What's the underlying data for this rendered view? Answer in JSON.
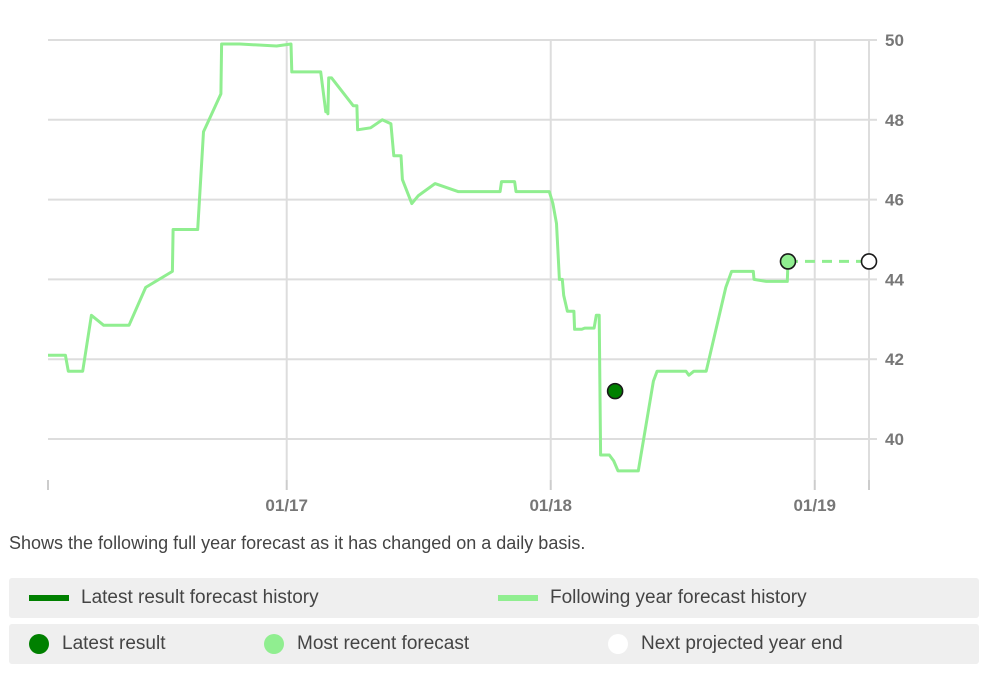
{
  "chart_data": {
    "type": "line",
    "title": "",
    "xlabel": "",
    "ylabel": "",
    "x_ticks": [
      "01/17",
      "01/18",
      "01/19"
    ],
    "y_ticks": [
      40,
      42,
      44,
      46,
      48,
      50
    ],
    "ylim": [
      39.0,
      50.0
    ],
    "xlim": [
      "2016-02-06",
      "2019-03-17"
    ],
    "grid": true,
    "y_axis_side": "right",
    "series": [
      {
        "name": "Following year forecast history",
        "color": "#90ee90",
        "points": [
          [
            "2016-02-06",
            42.1
          ],
          [
            "2016-03-01",
            42.1
          ],
          [
            "2016-03-05",
            41.7
          ],
          [
            "2016-03-25",
            41.7
          ],
          [
            "2016-04-06",
            43.1
          ],
          [
            "2016-04-23",
            42.85
          ],
          [
            "2016-05-28",
            42.85
          ],
          [
            "2016-06-20",
            43.8
          ],
          [
            "2016-07-27",
            44.2
          ],
          [
            "2016-07-28",
            45.25
          ],
          [
            "2016-08-31",
            45.25
          ],
          [
            "2016-09-08",
            47.7
          ],
          [
            "2016-10-02",
            48.65
          ],
          [
            "2016-10-03",
            49.9
          ],
          [
            "2016-10-28",
            49.9
          ],
          [
            "2016-12-18",
            49.85
          ],
          [
            "2017-01-07",
            49.9
          ],
          [
            "2017-01-08",
            49.2
          ],
          [
            "2017-02-17",
            49.2
          ],
          [
            "2017-02-24",
            48.2
          ],
          [
            "2017-02-25",
            48.3
          ],
          [
            "2017-02-27",
            48.15
          ],
          [
            "2017-02-28",
            49.05
          ],
          [
            "2017-03-04",
            49.05
          ],
          [
            "2017-04-03",
            48.35
          ],
          [
            "2017-04-08",
            48.35
          ],
          [
            "2017-04-09",
            47.75
          ],
          [
            "2017-04-27",
            47.8
          ],
          [
            "2017-05-13",
            48.0
          ],
          [
            "2017-05-25",
            47.9
          ],
          [
            "2017-05-29",
            47.1
          ],
          [
            "2017-06-08",
            47.1
          ],
          [
            "2017-06-10",
            46.5
          ],
          [
            "2017-06-23",
            45.9
          ],
          [
            "2017-07-02",
            46.1
          ],
          [
            "2017-07-25",
            46.4
          ],
          [
            "2017-08-26",
            46.2
          ],
          [
            "2017-10-23",
            46.2
          ],
          [
            "2017-10-25",
            46.45
          ],
          [
            "2017-11-12",
            46.45
          ],
          [
            "2017-11-14",
            46.2
          ],
          [
            "2017-12-30",
            46.2
          ],
          [
            "2018-01-04",
            45.9
          ],
          [
            "2018-01-09",
            45.4
          ],
          [
            "2018-01-13",
            44.0
          ],
          [
            "2018-01-17",
            44.0
          ],
          [
            "2018-01-19",
            43.6
          ],
          [
            "2018-01-24",
            43.2
          ],
          [
            "2018-02-02",
            43.2
          ],
          [
            "2018-02-03",
            42.75
          ],
          [
            "2018-02-13",
            42.75
          ],
          [
            "2018-02-17",
            42.78
          ],
          [
            "2018-03-02",
            42.78
          ],
          [
            "2018-03-05",
            43.1
          ],
          [
            "2018-03-09",
            43.1
          ],
          [
            "2018-03-11",
            39.6
          ],
          [
            "2018-03-23",
            39.6
          ],
          [
            "2018-03-29",
            39.45
          ],
          [
            "2018-04-04",
            39.2
          ],
          [
            "2018-05-02",
            39.2
          ],
          [
            "2018-05-23",
            41.45
          ],
          [
            "2018-05-28",
            41.7
          ],
          [
            "2018-07-07",
            41.7
          ],
          [
            "2018-07-11",
            41.6
          ],
          [
            "2018-07-18",
            41.7
          ],
          [
            "2018-08-04",
            41.7
          ],
          [
            "2018-08-31",
            43.8
          ],
          [
            "2018-09-08",
            44.2
          ],
          [
            "2018-10-08",
            44.2
          ],
          [
            "2018-10-09",
            44.0
          ],
          [
            "2018-10-26",
            43.95
          ],
          [
            "2018-11-24",
            43.95
          ],
          [
            "2018-11-25",
            44.45
          ]
        ]
      }
    ],
    "projection": {
      "color": "#90ee90",
      "dashed": true,
      "points": [
        [
          "2018-11-25",
          44.45
        ],
        [
          "2019-03-17",
          44.45
        ]
      ]
    },
    "markers": [
      {
        "label": "Latest result",
        "date": "2018-03-31",
        "value": 41.2,
        "fill": "#008000"
      },
      {
        "label": "Most recent forecast",
        "date": "2018-11-25",
        "value": 44.45,
        "fill": "#90ee90"
      },
      {
        "label": "Next projected year end",
        "date": "2019-03-17",
        "value": 44.45,
        "fill": "#ffffff"
      }
    ]
  },
  "caption": "Shows the following full year forecast as it has changed on a daily basis.",
  "legend": {
    "lines": [
      {
        "label": "Latest result forecast history",
        "color": "#008000"
      },
      {
        "label": "Following year forecast history",
        "color": "#90ee90"
      }
    ],
    "dots": [
      {
        "label": "Latest result",
        "color": "#008000"
      },
      {
        "label": "Most recent forecast",
        "color": "#90ee90"
      },
      {
        "label": "Next projected year end",
        "color": "#ffffff"
      }
    ]
  }
}
